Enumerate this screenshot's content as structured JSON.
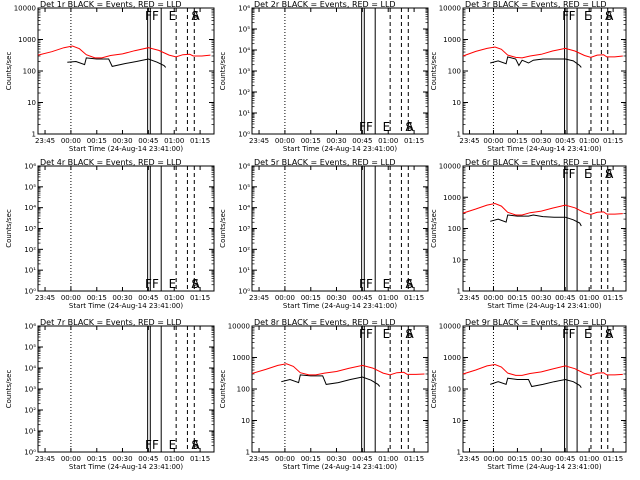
{
  "shared": {
    "xlabel": "Start Time (24-Aug-14 23:41:00)",
    "ylabel": "Counts/sec",
    "x_ticks": [
      "23:45",
      "00:00",
      "00:15",
      "00:30",
      "00:45",
      "01:00",
      "01:15"
    ],
    "dotted_line_at": "00:00"
  },
  "chart_data": [
    {
      "type": "line",
      "title": "Det 1r BLACK = Events, RED = LLD",
      "x_range_minutes": [
        0,
        102
      ],
      "y_scale": "log",
      "y_ticks": [
        "1",
        "10",
        "100",
        "1000",
        "10000"
      ],
      "events_shown": true,
      "series": [
        {
          "name": "Events",
          "color": "#000000",
          "points": [
            [
              17,
              190
            ],
            [
              22,
              200
            ],
            [
              27,
              160
            ],
            [
              28,
              260
            ],
            [
              34,
              240
            ],
            [
              41,
              240
            ],
            [
              43,
              140
            ],
            [
              50,
              170
            ],
            [
              57,
              200
            ],
            [
              64,
              240
            ],
            [
              69,
              190
            ],
            [
              73,
              150
            ],
            [
              74,
              130
            ]
          ]
        },
        {
          "name": "LLD",
          "color": "#ff0000",
          "points": [
            [
              0,
              320
            ],
            [
              8,
              410
            ],
            [
              15,
              550
            ],
            [
              20,
              620
            ],
            [
              24,
              510
            ],
            [
              28,
              330
            ],
            [
              33,
              260
            ],
            [
              37,
              260
            ],
            [
              42,
              310
            ],
            [
              49,
              350
            ],
            [
              56,
              440
            ],
            [
              64,
              550
            ],
            [
              70,
              450
            ],
            [
              76,
              320
            ],
            [
              80,
              280
            ],
            [
              84,
              330
            ],
            [
              88,
              340
            ],
            [
              90,
              300
            ],
            [
              95,
              300
            ],
            [
              100,
              320
            ]
          ]
        }
      ],
      "markers": [
        "F",
        "F",
        "E",
        "S",
        "A"
      ]
    },
    {
      "type": "line",
      "title": "Det 2r BLACK = Events, RED = LLD",
      "x_range_minutes": [
        0,
        102
      ],
      "y_scale": "log",
      "y_ticks": [
        "10⁰",
        "10¹",
        "10²",
        "10³",
        "10⁴",
        "10⁵",
        "10⁶"
      ],
      "events_shown": false,
      "series": [],
      "markers": [
        "F",
        "F",
        "E",
        "S",
        "A"
      ]
    },
    {
      "type": "line",
      "title": "Det 3r BLACK = Events, RED = LLD",
      "x_range_minutes": [
        0,
        102
      ],
      "y_scale": "log",
      "y_ticks": [
        "1",
        "10",
        "100",
        "1000",
        "10000"
      ],
      "events_shown": true,
      "series": [
        {
          "name": "Events",
          "color": "#000000",
          "points": [
            [
              17,
              180
            ],
            [
              22,
              210
            ],
            [
              27,
              170
            ],
            [
              28,
              280
            ],
            [
              33,
              240
            ],
            [
              35,
              150
            ],
            [
              37,
              220
            ],
            [
              41,
              180
            ],
            [
              44,
              220
            ],
            [
              50,
              240
            ],
            [
              57,
              240
            ],
            [
              64,
              240
            ],
            [
              69,
              210
            ],
            [
              73,
              150
            ],
            [
              74,
              130
            ]
          ]
        },
        {
          "name": "LLD",
          "color": "#ff0000",
          "points": [
            [
              0,
              300
            ],
            [
              8,
              420
            ],
            [
              15,
              520
            ],
            [
              20,
              580
            ],
            [
              24,
              490
            ],
            [
              28,
              320
            ],
            [
              33,
              270
            ],
            [
              37,
              260
            ],
            [
              42,
              300
            ],
            [
              49,
              340
            ],
            [
              56,
              430
            ],
            [
              64,
              520
            ],
            [
              70,
              430
            ],
            [
              76,
              310
            ],
            [
              80,
              270
            ],
            [
              84,
              320
            ],
            [
              88,
              330
            ],
            [
              90,
              280
            ],
            [
              95,
              280
            ],
            [
              100,
              300
            ]
          ]
        }
      ],
      "markers": [
        "F",
        "F",
        "E",
        "S",
        "A"
      ]
    },
    {
      "type": "line",
      "title": "Det 4r BLACK = Events, RED = LLD",
      "x_range_minutes": [
        0,
        102
      ],
      "y_scale": "log",
      "y_ticks": [
        "10⁰",
        "10¹",
        "10²",
        "10³",
        "10⁴",
        "10⁵",
        "10⁶"
      ],
      "events_shown": false,
      "series": [],
      "markers": [
        "F",
        "F",
        "E",
        "S",
        "A"
      ]
    },
    {
      "type": "line",
      "title": "Det 5r BLACK = Events, RED = LLD",
      "x_range_minutes": [
        0,
        102
      ],
      "y_scale": "log",
      "y_ticks": [
        "10⁰",
        "10¹",
        "10²",
        "10³",
        "10⁴",
        "10⁵",
        "10⁶"
      ],
      "events_shown": false,
      "series": [],
      "markers": [
        "F",
        "F",
        "E",
        "S",
        "A"
      ]
    },
    {
      "type": "line",
      "title": "Det 6r BLACK = Events, RED = LLD",
      "x_range_minutes": [
        0,
        102
      ],
      "y_scale": "log",
      "y_ticks": [
        "1",
        "10",
        "100",
        "1000",
        "10000"
      ],
      "events_shown": true,
      "series": [
        {
          "name": "Events",
          "color": "#000000",
          "points": [
            [
              17,
              170
            ],
            [
              22,
              200
            ],
            [
              27,
              160
            ],
            [
              28,
              270
            ],
            [
              34,
              250
            ],
            [
              41,
              250
            ],
            [
              44,
              270
            ],
            [
              50,
              240
            ],
            [
              57,
              230
            ],
            [
              64,
              230
            ],
            [
              69,
              190
            ],
            [
              73,
              150
            ],
            [
              74,
              120
            ]
          ]
        },
        {
          "name": "LLD",
          "color": "#ff0000",
          "points": [
            [
              0,
              310
            ],
            [
              8,
              420
            ],
            [
              15,
              560
            ],
            [
              20,
              630
            ],
            [
              24,
              520
            ],
            [
              28,
              330
            ],
            [
              33,
              270
            ],
            [
              37,
              270
            ],
            [
              42,
              320
            ],
            [
              49,
              360
            ],
            [
              56,
              450
            ],
            [
              64,
              560
            ],
            [
              70,
              460
            ],
            [
              76,
              320
            ],
            [
              80,
              280
            ],
            [
              84,
              330
            ],
            [
              88,
              340
            ],
            [
              90,
              290
            ],
            [
              95,
              290
            ],
            [
              100,
              300
            ]
          ]
        }
      ],
      "markers": [
        "F",
        "F",
        "E",
        "S",
        "A"
      ]
    },
    {
      "type": "line",
      "title": "Det 7r BLACK = Events, RED = LLD",
      "x_range_minutes": [
        0,
        102
      ],
      "y_scale": "log",
      "y_ticks": [
        "10⁰",
        "10¹",
        "10²",
        "10³",
        "10⁴",
        "10⁵",
        "10⁶"
      ],
      "events_shown": false,
      "series": [],
      "markers": [
        "F",
        "F",
        "E",
        "S",
        "A"
      ]
    },
    {
      "type": "line",
      "title": "Det 8r BLACK = Events, RED = LLD",
      "x_range_minutes": [
        0,
        102
      ],
      "y_scale": "log",
      "y_ticks": [
        "1",
        "10",
        "100",
        "1000",
        "10000"
      ],
      "events_shown": true,
      "series": [
        {
          "name": "Events",
          "color": "#000000",
          "points": [
            [
              17,
              170
            ],
            [
              22,
              200
            ],
            [
              27,
              160
            ],
            [
              28,
              280
            ],
            [
              34,
              260
            ],
            [
              41,
              260
            ],
            [
              43,
              140
            ],
            [
              50,
              160
            ],
            [
              57,
              200
            ],
            [
              64,
              240
            ],
            [
              69,
              190
            ],
            [
              73,
              140
            ],
            [
              74,
              120
            ]
          ]
        },
        {
          "name": "LLD",
          "color": "#ff0000",
          "points": [
            [
              0,
              310
            ],
            [
              8,
              420
            ],
            [
              15,
              560
            ],
            [
              20,
              630
            ],
            [
              24,
              520
            ],
            [
              28,
              330
            ],
            [
              33,
              280
            ],
            [
              37,
              280
            ],
            [
              42,
              320
            ],
            [
              49,
              360
            ],
            [
              56,
              450
            ],
            [
              64,
              560
            ],
            [
              70,
              460
            ],
            [
              76,
              320
            ],
            [
              80,
              280
            ],
            [
              84,
              330
            ],
            [
              88,
              340
            ],
            [
              90,
              290
            ],
            [
              95,
              290
            ],
            [
              100,
              300
            ]
          ]
        }
      ],
      "markers": [
        "F",
        "F",
        "E",
        "S",
        "A"
      ]
    },
    {
      "type": "line",
      "title": "Det 9r BLACK = Events, RED = LLD",
      "x_range_minutes": [
        0,
        102
      ],
      "y_scale": "log",
      "y_ticks": [
        "1",
        "10",
        "100",
        "1000",
        "10000"
      ],
      "events_shown": true,
      "series": [
        {
          "name": "Events",
          "color": "#000000",
          "points": [
            [
              17,
              140
            ],
            [
              22,
              170
            ],
            [
              27,
              140
            ],
            [
              28,
              220
            ],
            [
              34,
              200
            ],
            [
              41,
              200
            ],
            [
              43,
              120
            ],
            [
              50,
              140
            ],
            [
              57,
              170
            ],
            [
              64,
              200
            ],
            [
              69,
              170
            ],
            [
              73,
              130
            ],
            [
              74,
              110
            ]
          ]
        },
        {
          "name": "LLD",
          "color": "#ff0000",
          "points": [
            [
              0,
              300
            ],
            [
              8,
              400
            ],
            [
              15,
              540
            ],
            [
              20,
              600
            ],
            [
              24,
              500
            ],
            [
              28,
              320
            ],
            [
              33,
              270
            ],
            [
              37,
              270
            ],
            [
              42,
              310
            ],
            [
              49,
              350
            ],
            [
              56,
              430
            ],
            [
              64,
              540
            ],
            [
              70,
              440
            ],
            [
              76,
              310
            ],
            [
              80,
              270
            ],
            [
              84,
              320
            ],
            [
              88,
              330
            ],
            [
              90,
              280
            ],
            [
              95,
              280
            ],
            [
              100,
              290
            ]
          ]
        }
      ],
      "markers": [
        "F",
        "F",
        "E",
        "S",
        "A"
      ]
    }
  ]
}
